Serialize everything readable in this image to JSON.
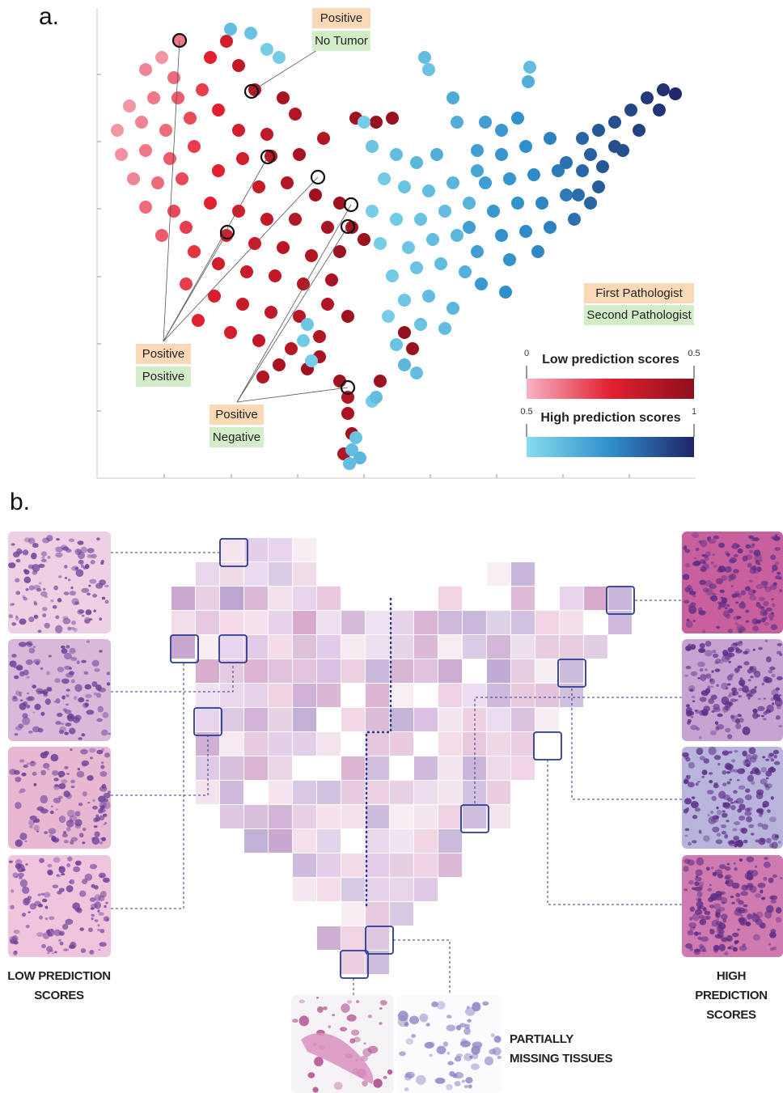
{
  "panel_labels": [
    "a.",
    "b."
  ],
  "chart_data": {
    "type": "scatter",
    "xlim": [
      0,
      740
    ],
    "ylim": [
      0,
      581
    ],
    "xticks": [
      83,
      166,
      248,
      330,
      412,
      494,
      576,
      658
    ],
    "yticks": [
      83,
      166,
      249,
      333,
      416,
      499
    ],
    "points": [
      [
        102,
        541,
        0.1
      ],
      [
        80,
        520,
        0.05
      ],
      [
        60,
        505,
        0.08
      ],
      [
        95,
        495,
        0.12
      ],
      [
        40,
        460,
        0.05
      ],
      [
        70,
        470,
        0.1
      ],
      [
        100,
        470,
        0.15
      ],
      [
        25,
        430,
        0.05
      ],
      [
        55,
        440,
        0.08
      ],
      [
        85,
        430,
        0.12
      ],
      [
        115,
        445,
        0.18
      ],
      [
        30,
        400,
        0.06
      ],
      [
        60,
        405,
        0.1
      ],
      [
        90,
        395,
        0.15
      ],
      [
        120,
        410,
        0.2
      ],
      [
        45,
        370,
        0.08
      ],
      [
        75,
        365,
        0.12
      ],
      [
        105,
        370,
        0.18
      ],
      [
        60,
        335,
        0.12
      ],
      [
        95,
        330,
        0.18
      ],
      [
        80,
        300,
        0.15
      ],
      [
        110,
        310,
        0.2
      ],
      [
        130,
        480,
        0.2
      ],
      [
        140,
        520,
        0.25
      ],
      [
        150,
        455,
        0.25
      ],
      [
        160,
        540,
        0.3
      ],
      [
        175,
        510,
        0.35
      ],
      [
        195,
        480,
        0.4
      ],
      [
        230,
        470,
        0.42
      ],
      [
        175,
        430,
        0.3
      ],
      [
        210,
        425,
        0.35
      ],
      [
        245,
        450,
        0.4
      ],
      [
        180,
        395,
        0.3
      ],
      [
        215,
        398,
        0.38
      ],
      [
        250,
        400,
        0.42
      ],
      [
        280,
        420,
        0.4
      ],
      [
        150,
        380,
        0.25
      ],
      [
        200,
        360,
        0.33
      ],
      [
        235,
        365,
        0.4
      ],
      [
        270,
        350,
        0.45
      ],
      [
        300,
        340,
        0.45
      ],
      [
        140,
        340,
        0.25
      ],
      [
        175,
        330,
        0.3
      ],
      [
        210,
        320,
        0.35
      ],
      [
        245,
        320,
        0.4
      ],
      [
        285,
        310,
        0.42
      ],
      [
        315,
        310,
        0.45
      ],
      [
        160,
        300,
        0.28
      ],
      [
        195,
        290,
        0.32
      ],
      [
        230,
        285,
        0.38
      ],
      [
        265,
        275,
        0.4
      ],
      [
        300,
        280,
        0.45
      ],
      [
        330,
        295,
        0.46
      ],
      [
        120,
        280,
        0.22
      ],
      [
        150,
        265,
        0.3
      ],
      [
        185,
        255,
        0.33
      ],
      [
        220,
        250,
        0.35
      ],
      [
        255,
        240,
        0.38
      ],
      [
        290,
        245,
        0.42
      ],
      [
        110,
        240,
        0.2
      ],
      [
        145,
        225,
        0.28
      ],
      [
        180,
        215,
        0.32
      ],
      [
        215,
        205,
        0.35
      ],
      [
        250,
        200,
        0.38
      ],
      [
        285,
        215,
        0.4
      ],
      [
        125,
        195,
        0.25
      ],
      [
        165,
        180,
        0.3
      ],
      [
        200,
        170,
        0.35
      ],
      [
        240,
        160,
        0.38
      ],
      [
        275,
        175,
        0.4
      ],
      [
        310,
        200,
        0.45
      ],
      [
        320,
        445,
        0.45
      ],
      [
        345,
        440,
        0.47
      ],
      [
        365,
        445,
        0.47
      ],
      [
        205,
        125,
        0.4
      ],
      [
        225,
        140,
        0.42
      ],
      [
        260,
        135,
        0.45
      ],
      [
        275,
        150,
        0.42
      ],
      [
        300,
        120,
        0.44
      ],
      [
        310,
        80,
        0.42
      ],
      [
        310,
        100,
        0.4
      ],
      [
        315,
        55,
        0.45
      ],
      [
        305,
        30,
        0.4
      ],
      [
        350,
        120,
        0.45
      ],
      [
        380,
        180,
        0.48
      ],
      [
        390,
        160,
        0.47
      ],
      [
        330,
        440,
        0.55
      ],
      [
        340,
        410,
        0.58
      ],
      [
        370,
        400,
        0.6
      ],
      [
        395,
        390,
        0.62
      ],
      [
        420,
        400,
        0.65
      ],
      [
        440,
        470,
        0.66
      ],
      [
        445,
        440,
        0.65
      ],
      [
        355,
        370,
        0.56
      ],
      [
        380,
        360,
        0.58
      ],
      [
        410,
        355,
        0.6
      ],
      [
        440,
        365,
        0.62
      ],
      [
        470,
        380,
        0.68
      ],
      [
        340,
        330,
        0.55
      ],
      [
        370,
        320,
        0.56
      ],
      [
        400,
        320,
        0.58
      ],
      [
        430,
        330,
        0.6
      ],
      [
        460,
        340,
        0.63
      ],
      [
        350,
        290,
        0.55
      ],
      [
        385,
        285,
        0.57
      ],
      [
        415,
        295,
        0.6
      ],
      [
        445,
        300,
        0.62
      ],
      [
        365,
        250,
        0.56
      ],
      [
        395,
        260,
        0.58
      ],
      [
        425,
        265,
        0.6
      ],
      [
        455,
        255,
        0.64
      ],
      [
        380,
        220,
        0.57
      ],
      [
        410,
        225,
        0.6
      ],
      [
        440,
        210,
        0.62
      ],
      [
        400,
        190,
        0.58
      ],
      [
        430,
        185,
        0.6
      ],
      [
        360,
        200,
        0.55
      ],
      [
        260,
        190,
        0.57
      ],
      [
        255,
        170,
        0.56
      ],
      [
        265,
        145,
        0.55
      ],
      [
        395,
        130,
        0.6
      ],
      [
        410,
        505,
        0.58
      ],
      [
        405,
        520,
        0.6
      ],
      [
        535,
        508,
        0.6
      ],
      [
        533,
        490,
        0.65
      ],
      [
        165,
        555,
        0.6
      ],
      [
        190,
        550,
        0.58
      ],
      [
        210,
        530,
        0.55
      ],
      [
        225,
        520,
        0.55
      ],
      [
        380,
        140,
        0.62
      ],
      [
        370,
        165,
        0.58
      ],
      [
        320,
        50,
        0.58
      ],
      [
        315,
        35,
        0.6
      ],
      [
        325,
        25,
        0.62
      ],
      [
        312,
        18,
        0.6
      ],
      [
        340,
        95,
        0.55
      ],
      [
        345,
        100,
        0.6
      ],
      [
        480,
        440,
        0.7
      ],
      [
        500,
        430,
        0.72
      ],
      [
        520,
        445,
        0.74
      ],
      [
        470,
        405,
        0.7
      ],
      [
        500,
        400,
        0.73
      ],
      [
        530,
        410,
        0.75
      ],
      [
        560,
        420,
        0.78
      ],
      [
        480,
        365,
        0.7
      ],
      [
        510,
        370,
        0.73
      ],
      [
        540,
        375,
        0.76
      ],
      [
        570,
        380,
        0.8
      ],
      [
        490,
        330,
        0.72
      ],
      [
        520,
        340,
        0.74
      ],
      [
        550,
        340,
        0.77
      ],
      [
        580,
        350,
        0.8
      ],
      [
        500,
        300,
        0.74
      ],
      [
        530,
        305,
        0.76
      ],
      [
        560,
        310,
        0.78
      ],
      [
        470,
        280,
        0.7
      ],
      [
        510,
        270,
        0.74
      ],
      [
        545,
        280,
        0.77
      ],
      [
        475,
        240,
        0.72
      ],
      [
        505,
        230,
        0.75
      ],
      [
        460,
        310,
        0.7
      ],
      [
        590,
        320,
        0.82
      ],
      [
        600,
        420,
        0.85
      ],
      [
        620,
        430,
        0.88
      ],
      [
        640,
        440,
        0.9
      ],
      [
        660,
        455,
        0.92
      ],
      [
        680,
        470,
        0.95
      ],
      [
        700,
        480,
        0.97
      ],
      [
        715,
        475,
        0.99
      ],
      [
        610,
        400,
        0.86
      ],
      [
        640,
        410,
        0.9
      ],
      [
        670,
        430,
        0.93
      ],
      [
        695,
        455,
        0.96
      ],
      [
        600,
        380,
        0.84
      ],
      [
        625,
        385,
        0.88
      ],
      [
        650,
        405,
        0.9
      ],
      [
        595,
        350,
        0.83
      ],
      [
        620,
        360,
        0.87
      ],
      [
        580,
        390,
        0.82
      ],
      [
        610,
        340,
        0.85
      ]
    ],
    "annotations": [
      {
        "texts": [
          "Positive",
          "No Tumor"
        ],
        "points": [
          [
            191,
            478
          ]
        ]
      },
      {
        "texts": [
          "Positive",
          "Positive"
        ],
        "points": [
          [
            102,
            541
          ],
          [
            161,
            304
          ],
          [
            211,
            397
          ],
          [
            273,
            372
          ]
        ]
      },
      {
        "texts": [
          "Positive",
          "Negative"
        ],
        "points": [
          [
            314,
            338
          ],
          [
            310,
            311
          ],
          [
            310,
            112
          ]
        ]
      }
    ],
    "legend": [
      {
        "label": "First Pathologist",
        "color": "#fcd9b6"
      },
      {
        "label": "Second Pathologist",
        "color": "#d4edc9"
      }
    ],
    "colorbars": [
      {
        "label": "Low prediction scores",
        "range": [
          0,
          0.5
        ],
        "colors": [
          "#f7b3c4",
          "#e3202f",
          "#8e0f1c"
        ]
      },
      {
        "label": "High prediction scores",
        "range": [
          0.5,
          1
        ],
        "colors": [
          "#86dcee",
          "#2f8fcb",
          "#1f2466"
        ]
      }
    ]
  },
  "mosaic": {
    "left_caption": "LOW PREDICTION SCORES",
    "right_caption": "HIGH PREDICTION SCORES",
    "bottom_caption": "PARTIALLY MISSING TISSUES"
  }
}
